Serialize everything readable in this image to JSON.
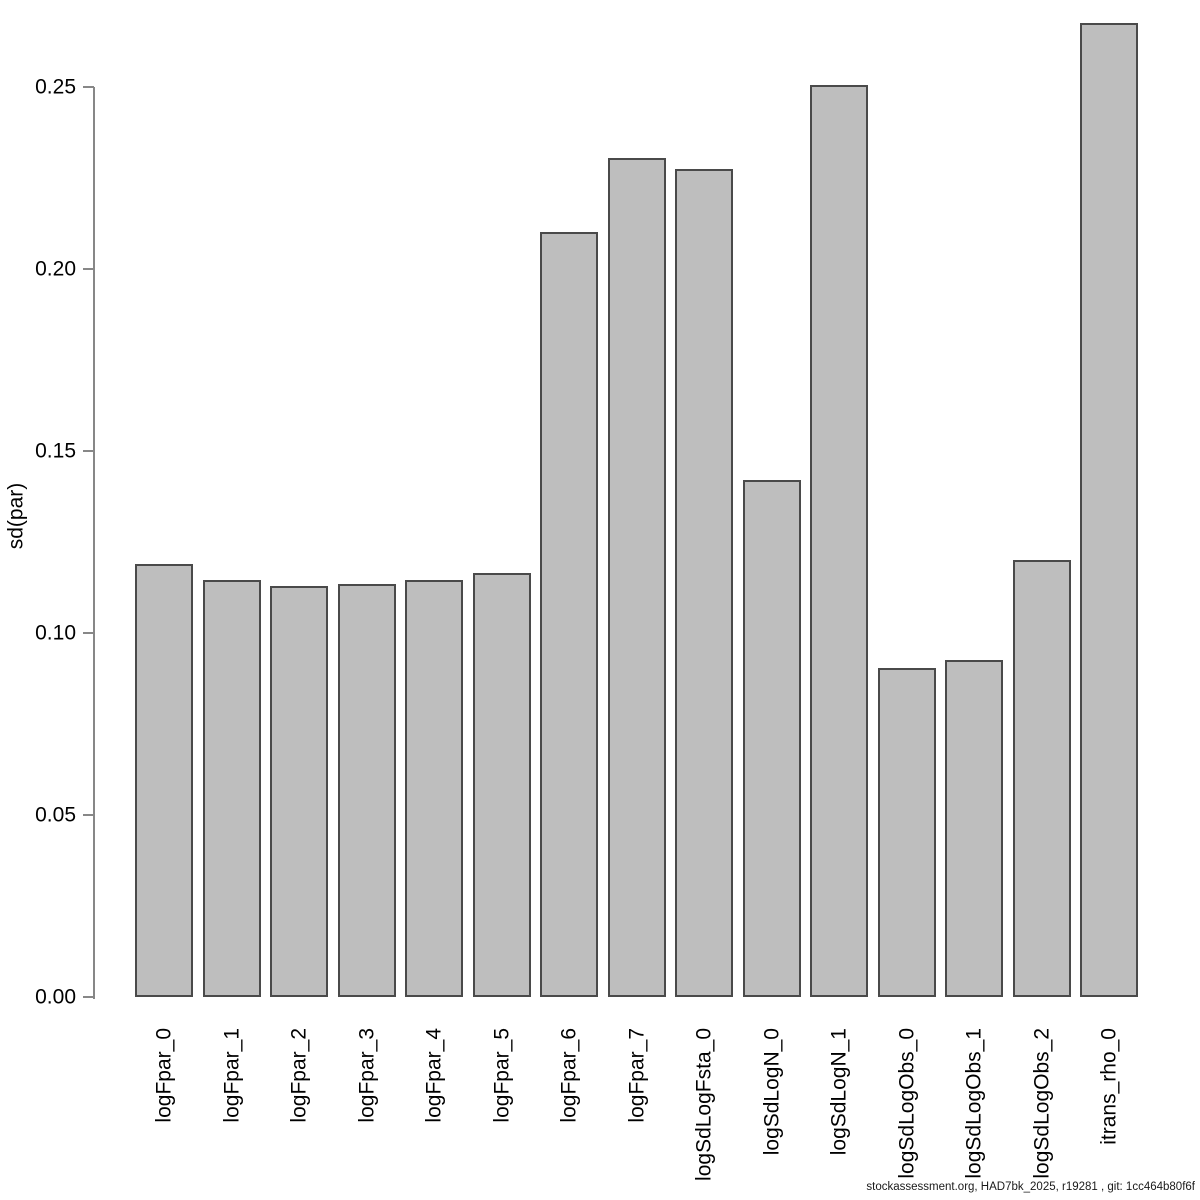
{
  "chart_data": {
    "type": "bar",
    "title": "",
    "xlabel": "",
    "ylabel": "sd(par)",
    "categories": [
      "logFpar_0",
      "logFpar_1",
      "logFpar_2",
      "logFpar_3",
      "logFpar_4",
      "logFpar_5",
      "logFpar_6",
      "logFpar_7",
      "logSdLogFsta_0",
      "logSdLogN_0",
      "logSdLogN_1",
      "logSdLogObs_0",
      "logSdLogObs_1",
      "logSdLogObs_2",
      "itrans_rho_0"
    ],
    "values": [
      0.119,
      0.1145,
      0.113,
      0.1135,
      0.1145,
      0.1165,
      0.2102,
      0.2305,
      0.2275,
      0.142,
      0.2505,
      0.0905,
      0.0925,
      0.12,
      0.2675
    ],
    "ytick_labels": [
      "0.00",
      "0.05",
      "0.10",
      "0.15",
      "0.20",
      "0.25"
    ],
    "ytick_values": [
      0.0,
      0.05,
      0.1,
      0.15,
      0.2,
      0.25
    ],
    "ylim": [
      0,
      0.25
    ],
    "grid": false,
    "legend": "none",
    "bar_fill_color": "#bebebe",
    "bar_border_color": "#4a4a4a",
    "axis_color": "#878787",
    "text_color": "#000000"
  },
  "footer": {
    "text": "stockassessment.org, HAD7bk_2025, r19281 , git: 1cc464b80f6f"
  }
}
